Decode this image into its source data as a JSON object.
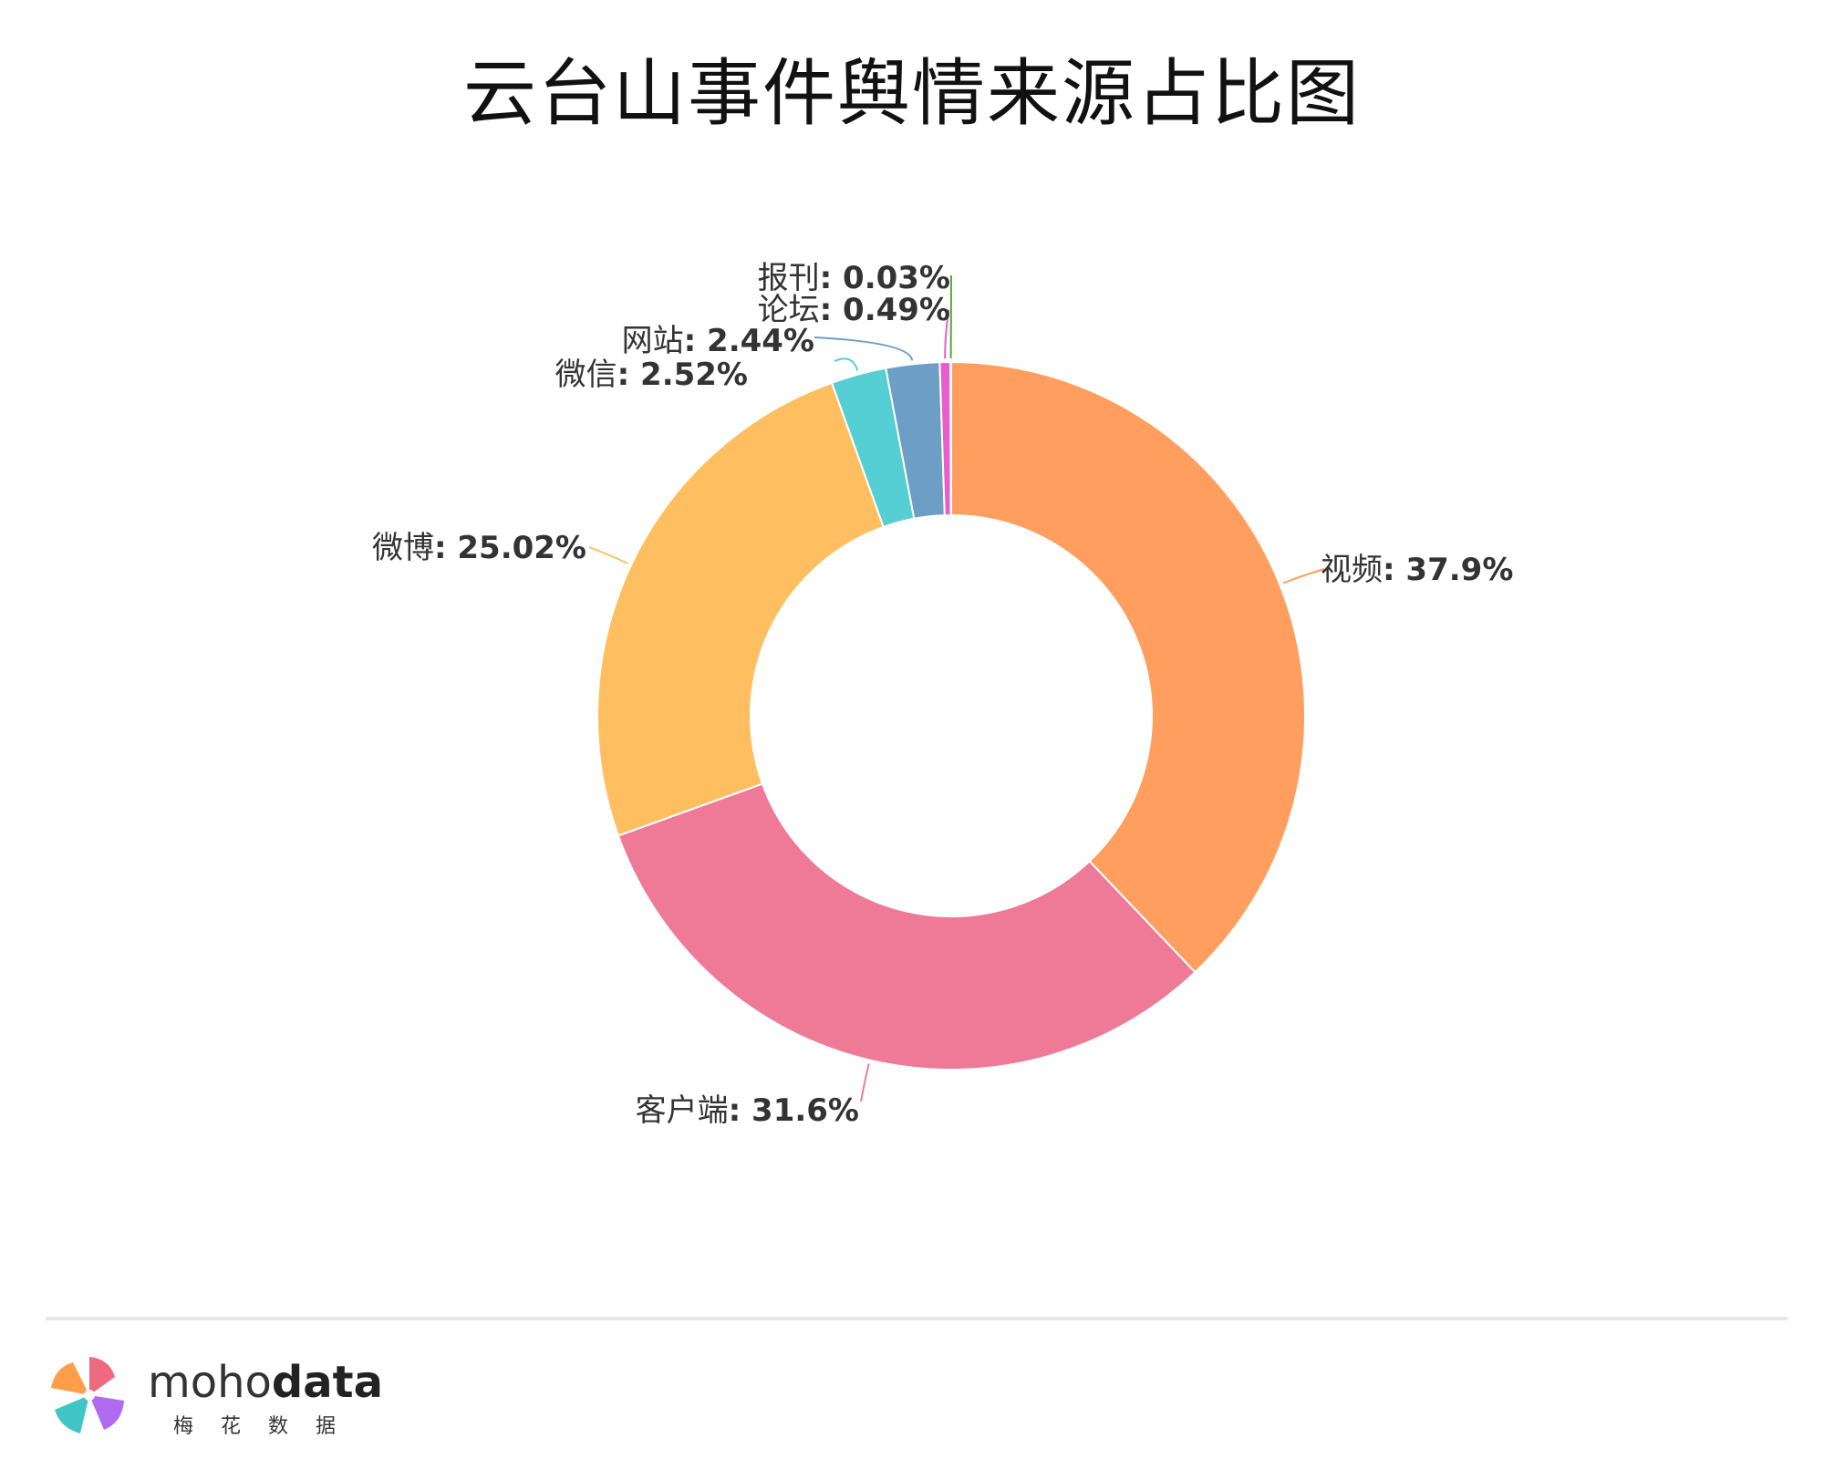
{
  "chart_data": {
    "type": "pie",
    "title": "云台山事件舆情来源占比图",
    "donut": true,
    "slices": [
      {
        "name": "视频",
        "value": 37.9,
        "label": "37.9%",
        "color": "#FF9E5E"
      },
      {
        "name": "客户端",
        "value": 31.6,
        "label": "31.6%",
        "color": "#EE7A98"
      },
      {
        "name": "微博",
        "value": 25.02,
        "label": "25.02%",
        "color": "#FFBF60"
      },
      {
        "name": "微信",
        "value": 2.52,
        "label": "2.52%",
        "color": "#55CFD3"
      },
      {
        "name": "网站",
        "value": 2.44,
        "label": "2.44%",
        "color": "#6C9EC6"
      },
      {
        "name": "论坛",
        "value": 0.49,
        "label": "0.49%",
        "color": "#E85FC9"
      },
      {
        "name": "报刊",
        "value": 0.03,
        "label": "0.03%",
        "color": "#5FA23E"
      }
    ]
  },
  "footer": {
    "brand_light": "moho",
    "brand_bold": "data",
    "brand_sub": "梅花数据"
  }
}
